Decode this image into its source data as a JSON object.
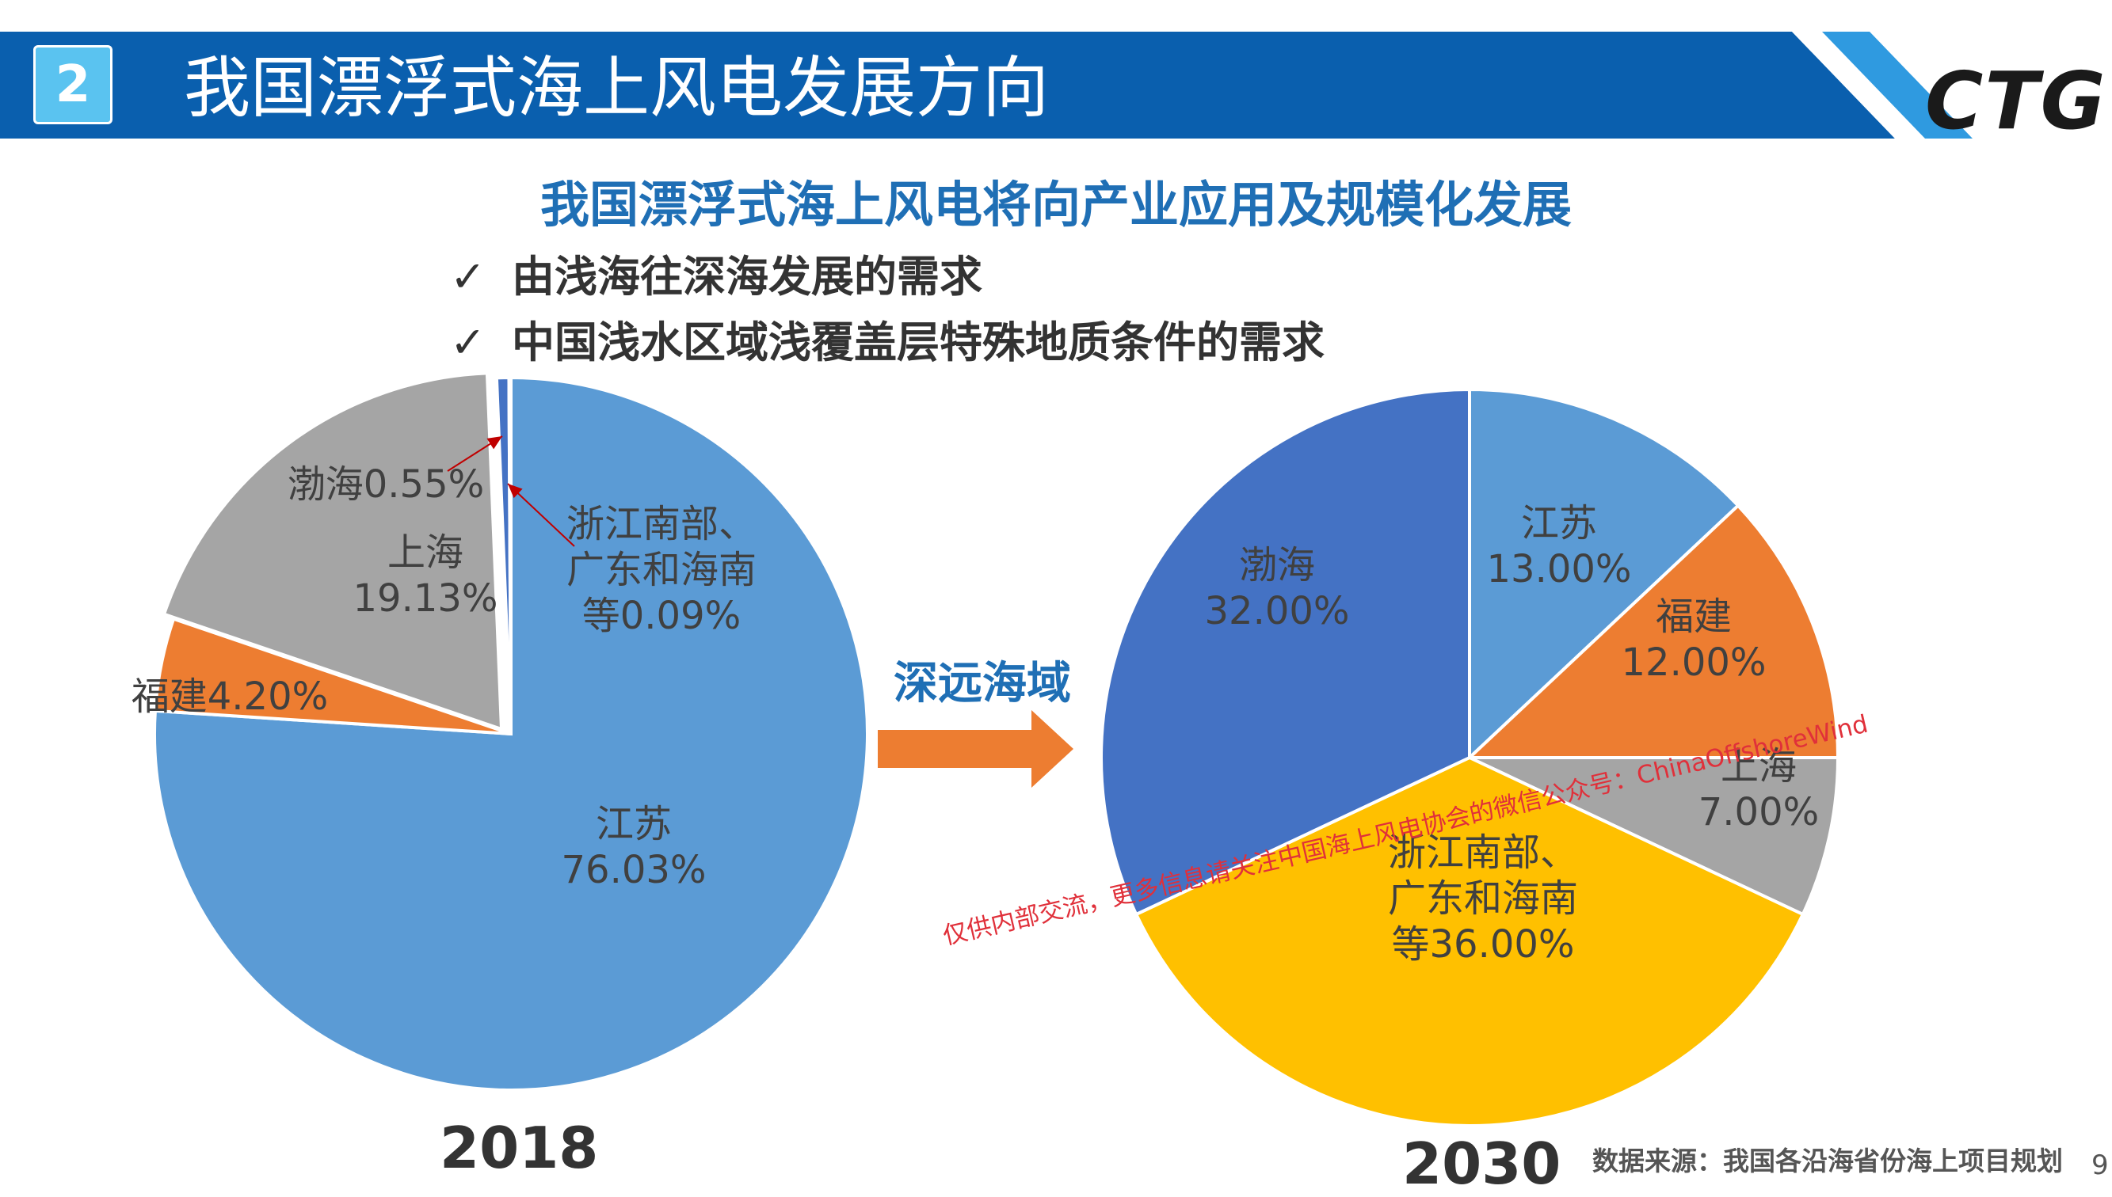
{
  "header": {
    "section_number": "2",
    "title": "我国漂浮式海上风电发展方向",
    "logo_text": "CTG"
  },
  "subtitle": "我国漂浮式海上风电将向产业应用及规模化发展",
  "bullets": [
    {
      "check": "✓",
      "text": "由浅海往深海发展的需求"
    },
    {
      "check": "✓",
      "text": "中国浅水区域浅覆盖层特殊地质条件的需求"
    }
  ],
  "arrow_label": "深远海域",
  "source": "数据来源：我国各沿海省份海上项目规划",
  "page_number": "9",
  "watermark": "仅供内部交流，更多信息请关注中国海上风电协会的微信公众号：ChinaOffshoreWind",
  "chart_data": [
    {
      "type": "pie",
      "title": "2018",
      "slices": [
        {
          "label": "江苏",
          "value": 76.03,
          "value_text": "76.03%",
          "color": "#5b9bd5"
        },
        {
          "label": "福建",
          "value": 4.2,
          "value_text": "4.20%",
          "color": "#ed7d31"
        },
        {
          "label": "上海",
          "value": 19.13,
          "value_text": "19.13%",
          "color": "#a5a5a5"
        },
        {
          "label": "渤海",
          "value": 0.55,
          "value_text": "0.55%",
          "color": "#4472c4"
        },
        {
          "label": "浙江南部、\n广东和海南\n等",
          "value": 0.09,
          "value_text": "0.09%",
          "color": "#ffc000"
        }
      ]
    },
    {
      "type": "pie",
      "title": "2030",
      "slices": [
        {
          "label": "江苏",
          "value": 13.0,
          "value_text": "13.00%",
          "color": "#5b9bd5"
        },
        {
          "label": "福建",
          "value": 12.0,
          "value_text": "12.00%",
          "color": "#ed7d31"
        },
        {
          "label": "上海",
          "value": 7.0,
          "value_text": "7.00%",
          "color": "#a5a5a5"
        },
        {
          "label": "浙江南部、\n广东和海南\n等",
          "value": 36.0,
          "value_text": "36.00%",
          "color": "#ffc000"
        },
        {
          "label": "渤海",
          "value": 32.0,
          "value_text": "32.00%",
          "color": "#4472c4"
        }
      ]
    }
  ],
  "colors": {
    "header_blue": "#0a5fae",
    "header_light": "#2f9ae0",
    "accent_blue": "#1f6fb5",
    "arrow_orange": "#ed7d31",
    "leader_red": "#c00000"
  }
}
